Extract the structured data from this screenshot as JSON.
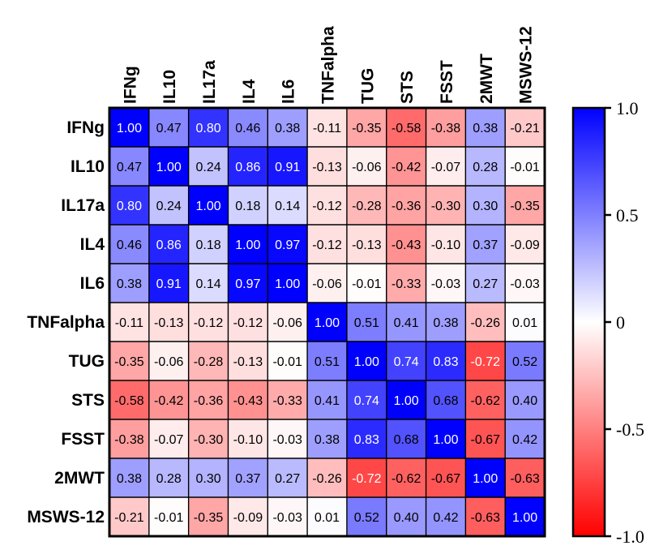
{
  "chart_data": {
    "type": "heatmap",
    "title": "",
    "variables": [
      "IFNg",
      "IL10",
      "IL17a",
      "IL4",
      "IL6",
      "TNFalpha",
      "TUG",
      "STS",
      "FSST",
      "2MWT",
      "MSWS-12"
    ],
    "rows": [
      "IFNg",
      "IL10",
      "IL17a",
      "IL4",
      "IL6",
      "TNFalpha",
      "TUG",
      "STS",
      "FSST",
      "2MWT",
      "MSWS-12"
    ],
    "columns": [
      "IFNg",
      "IL10",
      "IL17a",
      "IL4",
      "IL6",
      "TNFalpha",
      "TUG",
      "STS",
      "FSST",
      "2MWT",
      "MSWS-12"
    ],
    "values": [
      [
        1.0,
        0.47,
        0.8,
        0.46,
        0.38,
        -0.11,
        -0.35,
        -0.58,
        -0.38,
        0.38,
        -0.21
      ],
      [
        0.47,
        1.0,
        0.24,
        0.86,
        0.91,
        -0.13,
        -0.06,
        -0.42,
        -0.07,
        0.28,
        -0.01
      ],
      [
        0.8,
        0.24,
        1.0,
        0.18,
        0.14,
        -0.12,
        -0.28,
        -0.36,
        -0.3,
        0.3,
        -0.35
      ],
      [
        0.46,
        0.86,
        0.18,
        1.0,
        0.97,
        -0.12,
        -0.13,
        -0.43,
        -0.1,
        0.37,
        -0.09
      ],
      [
        0.38,
        0.91,
        0.14,
        0.97,
        1.0,
        -0.06,
        -0.01,
        -0.33,
        -0.03,
        0.27,
        -0.03
      ],
      [
        -0.11,
        -0.13,
        -0.12,
        -0.12,
        -0.06,
        1.0,
        0.51,
        0.41,
        0.38,
        -0.26,
        0.01
      ],
      [
        -0.35,
        -0.06,
        -0.28,
        -0.13,
        -0.01,
        0.51,
        1.0,
        0.74,
        0.83,
        -0.72,
        0.52
      ],
      [
        -0.58,
        -0.42,
        -0.36,
        -0.43,
        -0.33,
        0.41,
        0.74,
        1.0,
        0.68,
        -0.62,
        0.4
      ],
      [
        -0.38,
        -0.07,
        -0.3,
        -0.1,
        -0.03,
        0.38,
        0.83,
        0.68,
        1.0,
        -0.67,
        0.42
      ],
      [
        0.38,
        0.28,
        0.3,
        0.37,
        0.27,
        -0.26,
        -0.72,
        -0.62,
        -0.67,
        1.0,
        -0.63
      ],
      [
        -0.21,
        -0.01,
        -0.35,
        -0.09,
        -0.03,
        0.01,
        0.52,
        0.4,
        0.42,
        -0.63,
        1.0
      ]
    ],
    "colorbar": {
      "range": [
        -1.0,
        1.0
      ],
      "ticks": [
        1.0,
        0.5,
        0,
        -0.5,
        -1.0
      ],
      "tick_labels": [
        "1.0",
        "0.5",
        "0",
        "-0.5",
        "-1.0"
      ],
      "low_color": "#ff0000",
      "mid_color": "#ffffff",
      "high_color": "#0000ff"
    }
  }
}
